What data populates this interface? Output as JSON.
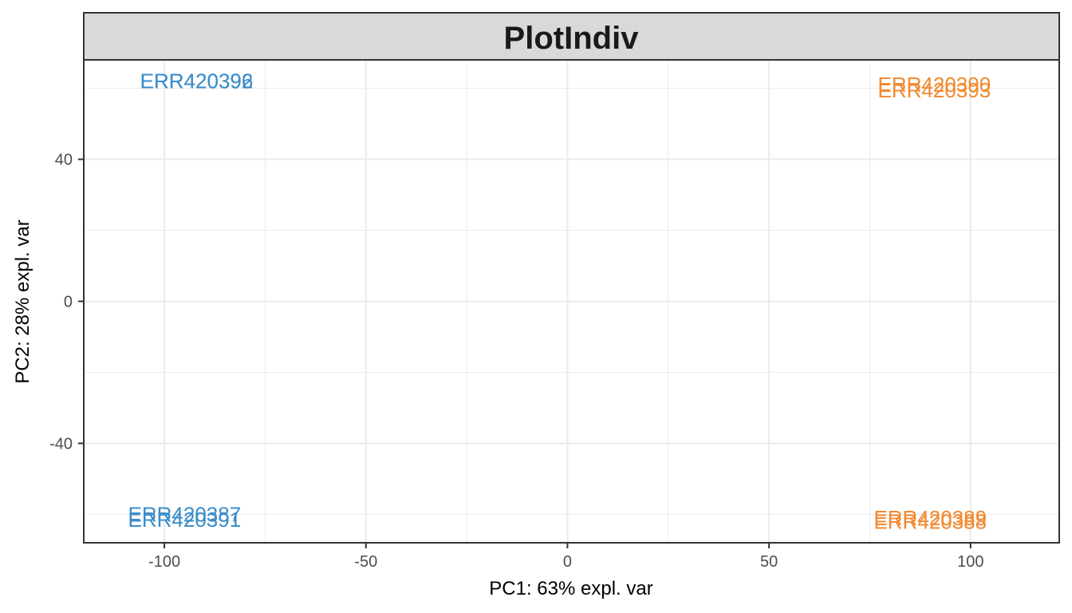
{
  "chart_data": {
    "type": "scatter",
    "title": "PlotIndiv",
    "xlabel": "PC1: 63% expl. var",
    "ylabel": "PC2: 28% expl. var",
    "xlim": [
      -120,
      122
    ],
    "ylim": [
      -68,
      68
    ],
    "xticks": [
      -100,
      -50,
      0,
      50,
      100
    ],
    "xtick_labels": [
      "-100",
      "-50",
      "0",
      "50",
      "100"
    ],
    "yticks": [
      -40,
      0,
      40
    ],
    "ytick_labels": [
      "-40",
      "0",
      "40"
    ],
    "grid": true,
    "legend": "none",
    "colors": {
      "group1": "#3b8dc9",
      "group2": "#f28a30",
      "strip_bg": "#d9d9d9",
      "grid": "#ebebeb",
      "panel_border": "#333333"
    },
    "points": [
      {
        "label": "ERR420392",
        "x": -92,
        "y": 62,
        "group": "group1"
      },
      {
        "label": "ERR420396",
        "x": -92,
        "y": 62,
        "group": "group1"
      },
      {
        "label": "ERR420387",
        "x": -95,
        "y": -60,
        "group": "group1"
      },
      {
        "label": "ERR420391",
        "x": -95,
        "y": -61.5,
        "group": "group1"
      },
      {
        "label": "ERR420390",
        "x": 91,
        "y": 61,
        "group": "group2"
      },
      {
        "label": "ERR420393",
        "x": 91,
        "y": 59.5,
        "group": "group2"
      },
      {
        "label": "ERR420389",
        "x": 90,
        "y": -61,
        "group": "group2"
      },
      {
        "label": "ERR420388",
        "x": 90,
        "y": -62,
        "group": "group2"
      }
    ]
  }
}
